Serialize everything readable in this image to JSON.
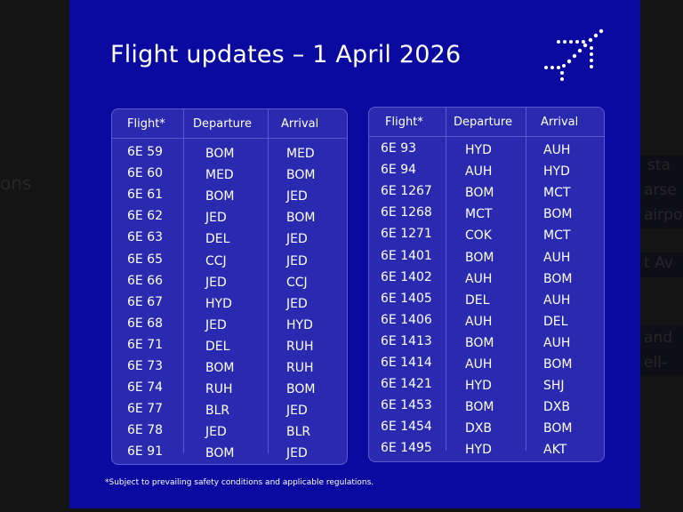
{
  "background": {
    "fragments": [
      "ons",
      "sta",
      "arse",
      "airpo",
      "t Av",
      "and",
      "ell-"
    ]
  },
  "panel": {
    "title": "Flight updates – 1 April 2026",
    "logo_icon": "airplane-dots-logo-icon",
    "background_color": "#0a0aa0",
    "footnote": "*Subject to prevailing safety conditions and applicable regulations."
  },
  "tables": [
    {
      "headers": [
        "Flight*",
        "Departure",
        "Arrival"
      ],
      "rows": [
        [
          "6E 59",
          "BOM",
          "MED"
        ],
        [
          "6E 60",
          "MED",
          "BOM"
        ],
        [
          "6E 61",
          "BOM",
          "JED"
        ],
        [
          "6E 62",
          "JED",
          "BOM"
        ],
        [
          "6E 63",
          "DEL",
          "JED"
        ],
        [
          "6E 65",
          "CCJ",
          "JED"
        ],
        [
          "6E 66",
          "JED",
          "CCJ"
        ],
        [
          "6E 67",
          "HYD",
          "JED"
        ],
        [
          "6E 68",
          "JED",
          "HYD"
        ],
        [
          "6E 71",
          "DEL",
          "RUH"
        ],
        [
          "6E 73",
          "BOM",
          "RUH"
        ],
        [
          "6E 74",
          "RUH",
          "BOM"
        ],
        [
          "6E 77",
          "BLR",
          "JED"
        ],
        [
          "6E 78",
          "JED",
          "BLR"
        ],
        [
          "6E 91",
          "BOM",
          "JED"
        ]
      ]
    },
    {
      "headers": [
        "Flight*",
        "Departure",
        "Arrival"
      ],
      "rows": [
        [
          "6E 93",
          "HYD",
          "AUH"
        ],
        [
          "6E 94",
          "AUH",
          "HYD"
        ],
        [
          "6E 1267",
          "BOM",
          "MCT"
        ],
        [
          "6E 1268",
          "MCT",
          "BOM"
        ],
        [
          "6E 1271",
          "COK",
          "MCT"
        ],
        [
          "6E 1401",
          "BOM",
          "AUH"
        ],
        [
          "6E 1402",
          "AUH",
          "BOM"
        ],
        [
          "6E 1405",
          "DEL",
          "AUH"
        ],
        [
          "6E 1406",
          "AUH",
          "DEL"
        ],
        [
          "6E 1413",
          "BOM",
          "AUH"
        ],
        [
          "6E 1414",
          "AUH",
          "BOM"
        ],
        [
          "6E 1421",
          "HYD",
          "SHJ"
        ],
        [
          "6E 1453",
          "BOM",
          "DXB"
        ],
        [
          "6E 1454",
          "DXB",
          "BOM"
        ],
        [
          "6E 1495",
          "HYD",
          "AKT"
        ]
      ]
    }
  ]
}
